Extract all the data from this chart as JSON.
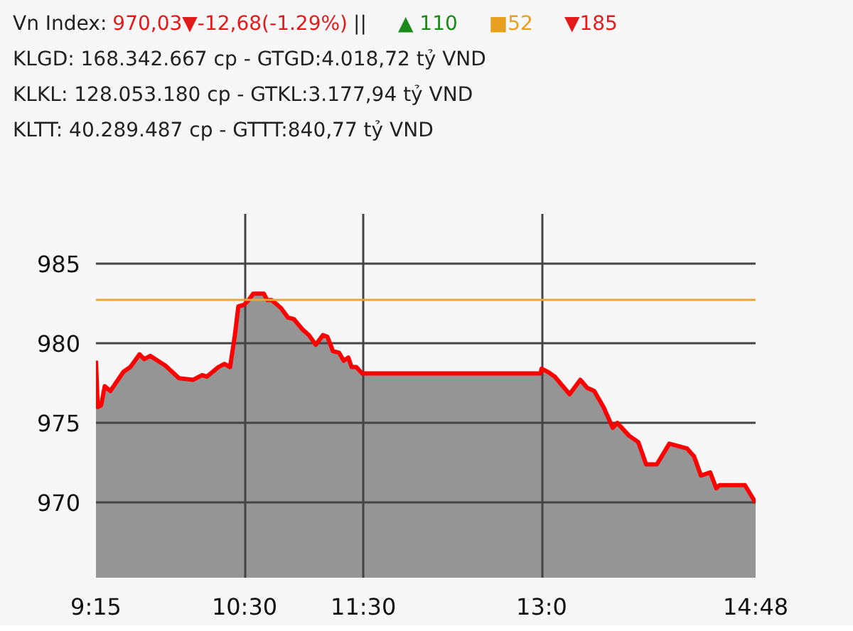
{
  "chart_data": {
    "type": "area",
    "title": "Vn Index:",
    "annotations": [
      "970,03▼-12,68(-1.29%)",
      "||",
      "▲ 110",
      "■52",
      "▼185",
      "KLGD: 168.342.667 cp - GTGD:4.018,72 tỷ VND",
      "KLKL: 128.053.180 cp - GTKL:3.177,94 tỷ VND",
      "KLTT: 40.289.487 cp - GTTT:840,77 tỷ VND"
    ],
    "x": [
      9.25,
      9.265,
      9.293,
      9.324,
      9.371,
      9.481,
      9.539,
      9.617,
      9.656,
      9.707,
      9.832,
      9.949,
      10.066,
      10.143,
      10.183,
      10.28,
      10.331,
      10.378,
      10.417,
      10.448,
      10.495,
      10.535,
      10.573,
      10.663,
      10.69,
      10.729,
      10.807,
      10.866,
      10.916,
      10.983,
      11.042,
      11.1,
      11.159,
      11.197,
      11.244,
      11.296,
      11.334,
      11.373,
      11.401,
      11.44,
      11.49,
      12.99,
      13.0,
      13.052,
      13.11,
      13.235,
      13.325,
      13.383,
      13.442,
      13.52,
      13.598,
      13.637,
      13.735,
      13.813,
      13.879,
      13.969,
      14.074,
      14.223,
      14.282,
      14.34,
      14.418,
      14.469,
      14.496,
      14.71,
      14.8
    ],
    "series": [
      {
        "color": "#ff0000",
        "values": [
          978.9,
          976.0,
          976.1,
          977.3,
          977.0,
          978.2,
          978.5,
          979.3,
          979.0,
          979.2,
          978.6,
          977.8,
          977.7,
          978.0,
          977.9,
          978.5,
          978.7,
          978.5,
          980.4,
          982.3,
          982.4,
          982.7,
          983.1,
          983.1,
          982.7,
          982.7,
          982.2,
          981.6,
          981.5,
          980.9,
          980.5,
          979.9,
          980.5,
          980.4,
          979.5,
          979.4,
          978.9,
          979.1,
          978.5,
          978.5,
          978.1,
          978.1,
          978.4,
          978.2,
          977.9,
          976.8,
          977.7,
          977.2,
          977.0,
          976.0,
          974.7,
          975.0,
          974.2,
          973.8,
          972.4,
          972.4,
          973.7,
          973.4,
          972.9,
          971.7,
          971.9,
          970.9,
          971.1,
          971.1,
          970.0
        ]
      }
    ],
    "xlim": [
      9.25,
      14.8
    ],
    "xticks": [
      {
        "value": 9.25,
        "label": "9:15"
      },
      {
        "value": 10.5,
        "label": "10:30"
      },
      {
        "value": 11.5,
        "label": "11:30"
      },
      {
        "value": 13,
        "label": "13:0"
      },
      {
        "value": 14.8,
        "label": "14:48"
      }
    ],
    "ylim": [
      965.3,
      988.1
    ],
    "yticks": [
      970,
      975,
      980,
      985
    ],
    "ref_lines": [
      {
        "axis": "y",
        "value": 982.71,
        "color": "#e8a838"
      }
    ],
    "grid": true
  }
}
